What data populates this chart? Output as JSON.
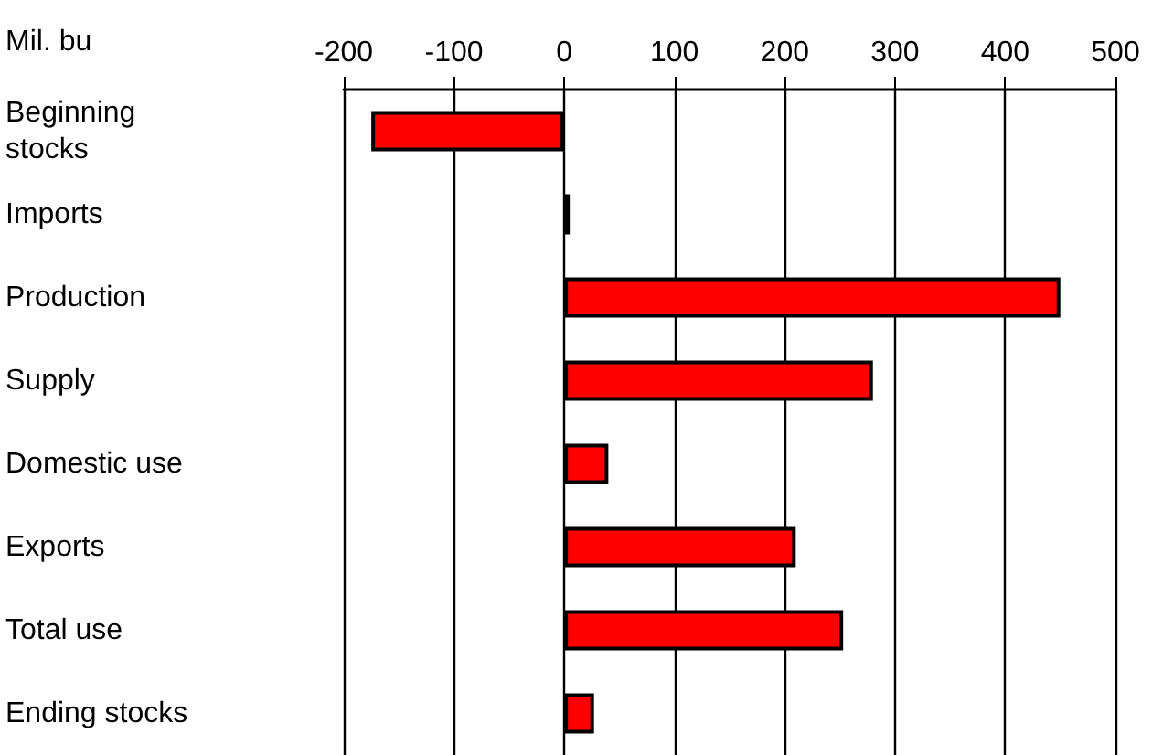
{
  "chart_data": {
    "type": "bar",
    "orientation": "horizontal",
    "xlabel": "Mil. bu",
    "categories": [
      "Beginning stocks",
      "Imports",
      "Production",
      "Supply",
      "Domestic use",
      "Exports",
      "Total use",
      "Ending stocks"
    ],
    "values": [
      -175,
      5,
      450,
      280,
      40,
      210,
      253,
      27
    ],
    "color": "#ff0000",
    "xlim": [
      -200,
      500
    ],
    "xticks": [
      -200,
      -100,
      0,
      100,
      200,
      300,
      400,
      500
    ],
    "grid": "x"
  }
}
